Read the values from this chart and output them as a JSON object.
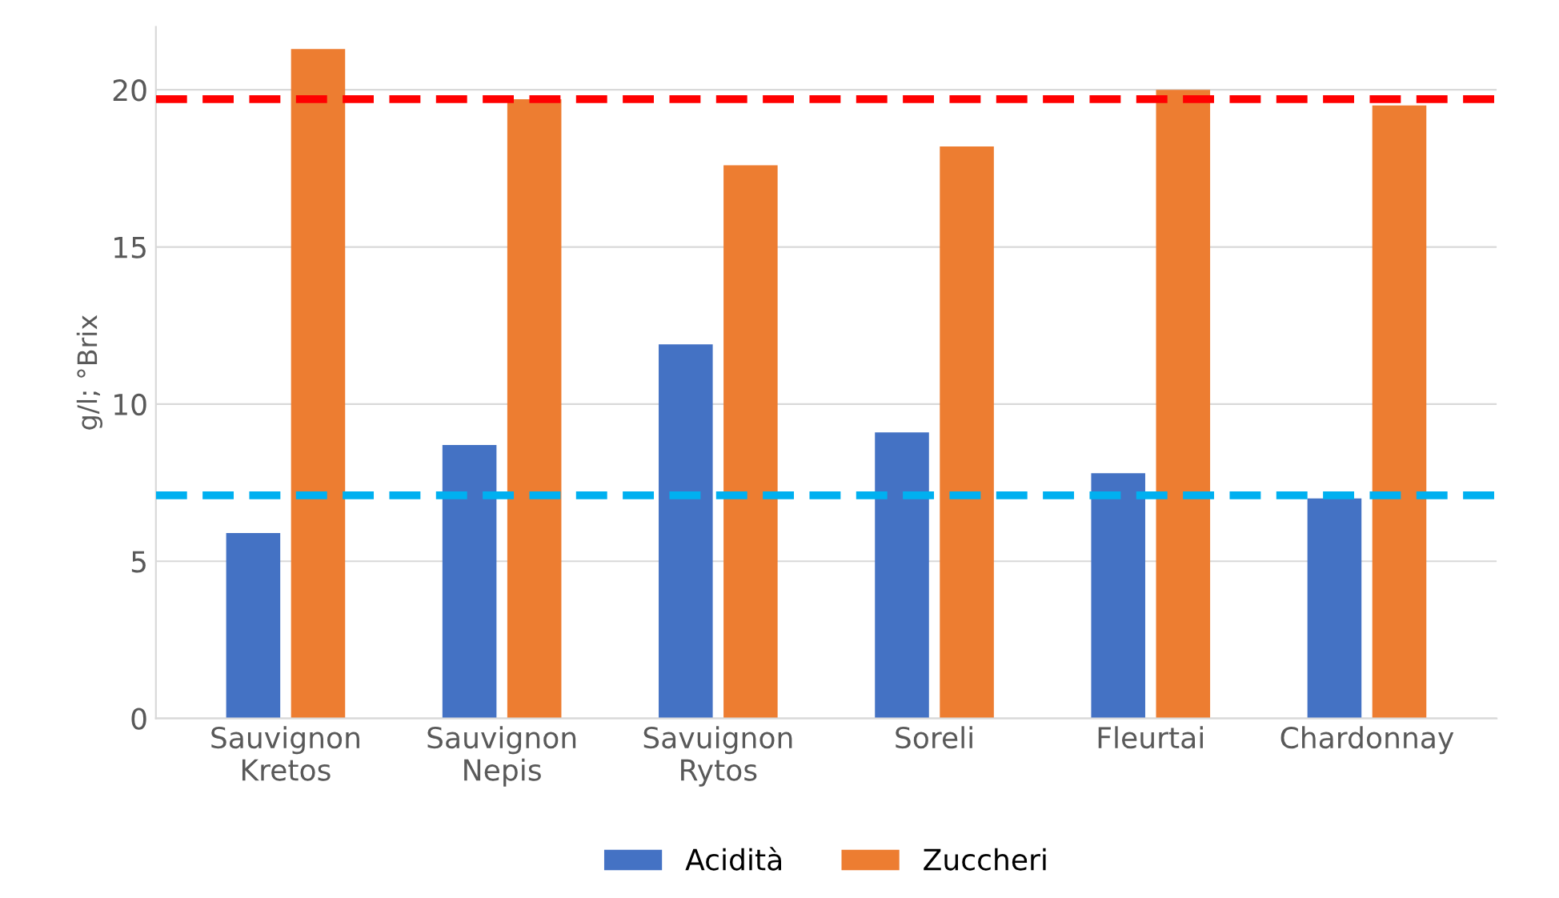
{
  "chart_data": {
    "type": "bar",
    "ylabel": "g/l; °Brix",
    "categories": [
      "Sauvignon\nKretos",
      "Sauvignon\nNepis",
      "Savuignon\nRytos",
      "Soreli",
      "Fleurtai",
      "Chardonnay"
    ],
    "series": [
      {
        "name": "Acidità",
        "color": "#4472c4",
        "values": [
          5.9,
          8.7,
          11.9,
          9.1,
          7.8,
          7.0
        ]
      },
      {
        "name": "Zuccheri",
        "color": "#ed7d31",
        "values": [
          21.3,
          19.7,
          17.6,
          18.2,
          20.0,
          19.5
        ]
      }
    ],
    "ylim": [
      0,
      22
    ],
    "yticks": [
      0,
      5,
      10,
      15,
      20
    ],
    "grid": "y",
    "legend": "bottom",
    "ref_lines": [
      {
        "axis": "y",
        "value": 19.7,
        "color": "#ff0000",
        "line_style": "dashed"
      },
      {
        "axis": "y",
        "value": 7.1,
        "color": "#00b0f0",
        "line_style": "dashed"
      }
    ]
  }
}
